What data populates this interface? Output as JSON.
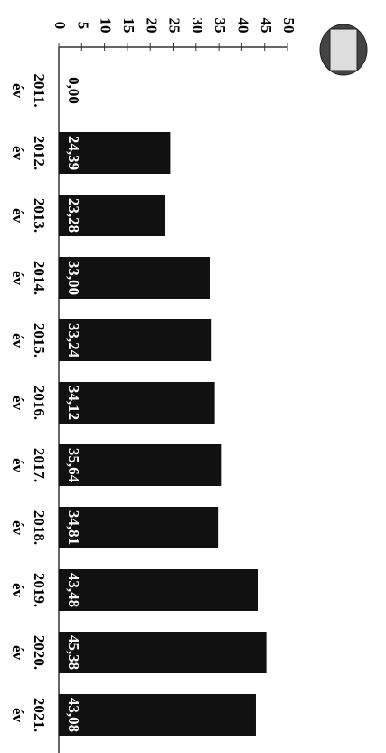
{
  "chart_data": {
    "type": "bar",
    "orientation": "horizontal",
    "categories": [
      "2011. év",
      "2012. év",
      "2013. év",
      "2014. év",
      "2015. év",
      "2016. év",
      "2017. év",
      "2018. év",
      "2019. év",
      "2020. év",
      "2021. év"
    ],
    "values": [
      0,
      24.39,
      23.28,
      33.0,
      33.24,
      34.12,
      35.64,
      34.81,
      43.48,
      45.38,
      43.08
    ],
    "value_labels": [
      "0,00",
      "24,39",
      "23,28",
      "33,00",
      "33,24",
      "34,12",
      "35,64",
      "34,81",
      "43,48",
      "45,38",
      "43,08"
    ],
    "color": "#111111",
    "xlim": [
      0,
      50
    ],
    "xticks": [
      0,
      5,
      10,
      15,
      20,
      25,
      30,
      35,
      40,
      45,
      50
    ]
  }
}
